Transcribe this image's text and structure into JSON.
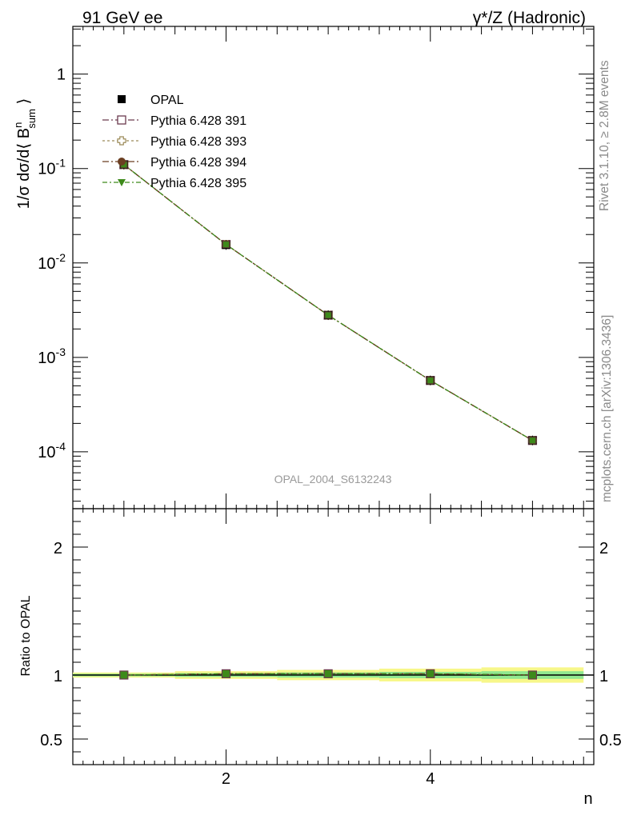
{
  "header": {
    "left": "91 GeV ee",
    "right": "γ*/Z (Hadronic)"
  },
  "side_text": {
    "rivet": "Rivet 3.1.10, ≥ 2.8M events",
    "mcplots": "mcplots.cern.ch [arXiv:1306.3436]"
  },
  "colors": {
    "data": "#000000",
    "p391": "#6b3a4e",
    "p393": "#9c8b59",
    "p394": "#6b3f22",
    "p395": "#3d8a1a",
    "band_yellow": "#f7f78a",
    "band_green": "#90e890"
  },
  "chart_data": [
    {
      "type": "scatter",
      "panel": "main",
      "ylabel": "1/σ dσ/d⟨ B_sum^n ⟩",
      "yscale": "log",
      "ylim": [
        2.5e-05,
        3.2
      ],
      "xlim": [
        0.5,
        5.6
      ],
      "x_ticklabels": [],
      "y_ticklabels": [
        "1",
        "10^-1",
        "10^-2",
        "10^-3",
        "10^-4"
      ],
      "watermark": "OPAL_2004_S6132243",
      "legend_position": "top-left",
      "x": [
        1,
        2,
        3,
        4,
        5
      ],
      "series": [
        {
          "name": "OPAL",
          "marker": "filled-square",
          "values": [
            0.11,
            0.0155,
            0.0028,
            0.00057,
            0.000132
          ]
        },
        {
          "name": "Pythia 6.428 391",
          "marker": "open-square",
          "values": [
            0.11,
            0.0157,
            0.0028,
            0.00057,
            0.000132
          ]
        },
        {
          "name": "Pythia 6.428 393",
          "marker": "open-cross",
          "values": [
            0.11,
            0.0157,
            0.0028,
            0.00057,
            0.000132
          ]
        },
        {
          "name": "Pythia 6.428 394",
          "marker": "filled-circle",
          "values": [
            0.11,
            0.0157,
            0.0028,
            0.00057,
            0.000132
          ]
        },
        {
          "name": "Pythia 6.428 395",
          "marker": "filled-triangle-down",
          "values": [
            0.11,
            0.0157,
            0.0028,
            0.00057,
            0.000132
          ]
        }
      ]
    },
    {
      "type": "scatter",
      "panel": "ratio",
      "ylabel": "Ratio to OPAL",
      "xlabel": "n",
      "ylim": [
        0.3,
        2.3
      ],
      "xlim": [
        0.5,
        5.6
      ],
      "x_ticklabels": [
        "2",
        "4"
      ],
      "y_ticklabels": [
        "2",
        "1",
        "0.5"
      ],
      "x": [
        1,
        2,
        3,
        4,
        5
      ],
      "bands": {
        "yellow_halfwidth": [
          0.02,
          0.03,
          0.04,
          0.05,
          0.06
        ],
        "green_halfwidth": [
          0.01,
          0.015,
          0.02,
          0.025,
          0.03
        ]
      },
      "series": [
        {
          "name": "Pythia 6.428 391",
          "values": [
            1.0,
            1.01,
            1.01,
            1.01,
            1.0
          ]
        },
        {
          "name": "Pythia 6.428 393",
          "values": [
            1.0,
            1.01,
            1.01,
            1.01,
            1.0
          ]
        },
        {
          "name": "Pythia 6.428 394",
          "values": [
            1.0,
            1.01,
            1.01,
            1.01,
            1.0
          ]
        },
        {
          "name": "Pythia 6.428 395",
          "values": [
            1.0,
            1.01,
            1.01,
            1.01,
            1.0
          ]
        }
      ]
    }
  ]
}
